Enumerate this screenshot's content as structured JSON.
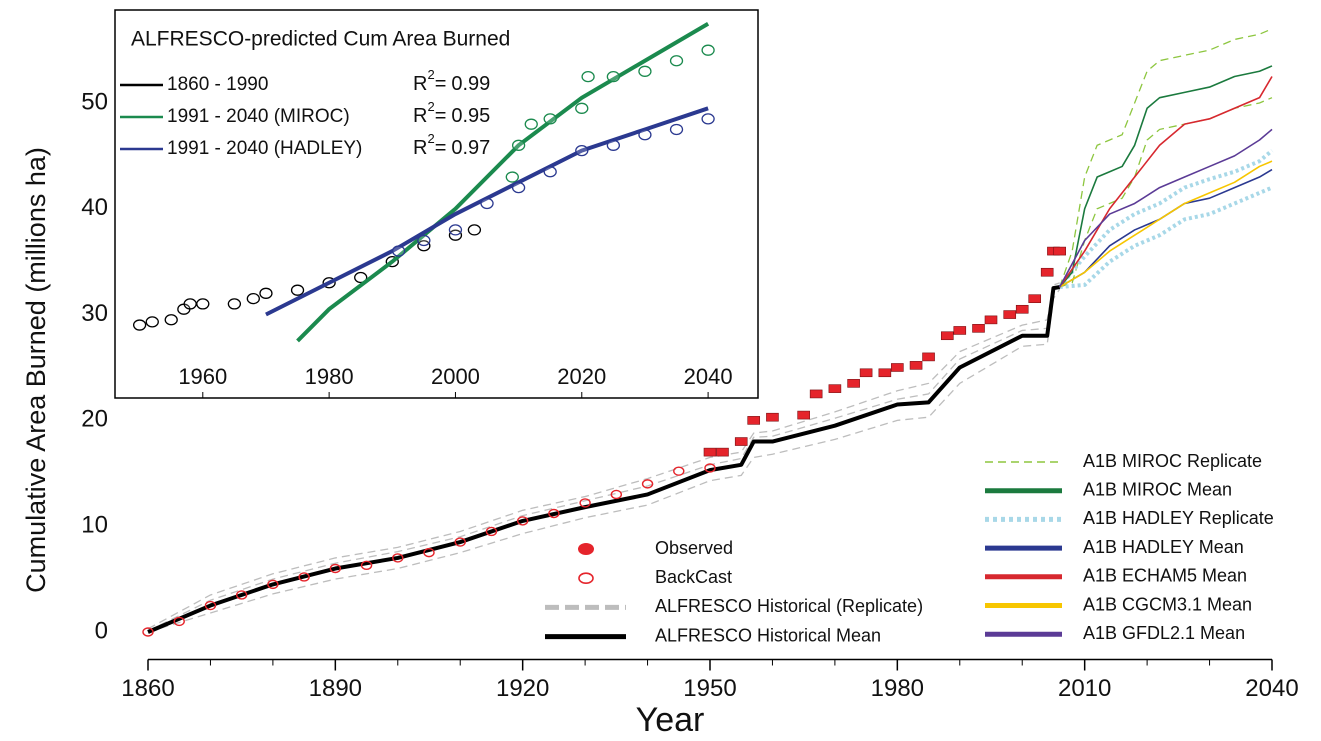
{
  "chart_data": [
    {
      "type": "line",
      "xlabel": "Year",
      "ylabel": "Cumulative Area Burned (millions ha)",
      "xlim": [
        1860,
        2040
      ],
      "ylim": [
        -2.6,
        57
      ],
      "xticks": [
        1860,
        1890,
        1920,
        1950,
        1980,
        2010,
        2040
      ],
      "xminorticks": [
        1870,
        1880,
        1900,
        1910,
        1930,
        1940,
        1960,
        1970,
        1990,
        2000,
        2020,
        2030
      ],
      "yticks": [
        0,
        10,
        20,
        30,
        40,
        50
      ],
      "grid": false,
      "series": [
        {
          "name": "Observed",
          "color": "#e5242b",
          "style": "marker-filled",
          "legend_group": "left",
          "x": [
            1950,
            1952,
            1955,
            1957,
            1960,
            1965,
            1967,
            1970,
            1973,
            1975,
            1978,
            1980,
            1983,
            1985,
            1988,
            1990,
            1993,
            1995,
            1998,
            2000,
            2002,
            2004,
            2005,
            2006
          ],
          "values": [
            17,
            17,
            18,
            20,
            20.3,
            20.5,
            22.5,
            23,
            23.5,
            24.5,
            24.5,
            25,
            25.2,
            26,
            28,
            28.5,
            28.7,
            29.5,
            30,
            30.5,
            31.5,
            34,
            36,
            36
          ]
        },
        {
          "name": "BackCast",
          "color": "#e5242b",
          "style": "marker-open",
          "legend_group": "left",
          "x": [
            1860,
            1865,
            1870,
            1875,
            1880,
            1885,
            1890,
            1895,
            1900,
            1905,
            1910,
            1915,
            1920,
            1925,
            1930,
            1935,
            1940,
            1945,
            1950
          ],
          "values": [
            0,
            1,
            2.5,
            3.5,
            4.5,
            5.2,
            6,
            6.3,
            7,
            7.5,
            8.5,
            9.5,
            10.5,
            11.2,
            12.2,
            13,
            14,
            15.2,
            15.5
          ]
        },
        {
          "name": "ALFRESCO Historical (Replicate)",
          "color": "#bdbdbd",
          "style": "dashed",
          "legend_group": "left",
          "x": [
            1860,
            1870,
            1880,
            1890,
            1900,
            1910,
            1920,
            1930,
            1940,
            1950,
            1955,
            1957,
            1960,
            1970,
            1980,
            1985,
            1990,
            2000,
            2004,
            2005,
            2006
          ],
          "replicates": [
            [
              0.3,
              3.5,
              5.5,
              7,
              8,
              9.5,
              11.5,
              12.8,
              14.5,
              16.5,
              17,
              18.8,
              19,
              20.8,
              22.8,
              23.5,
              26.5,
              29,
              29.5,
              32.8,
              33
            ],
            [
              0.1,
              3,
              5,
              6.5,
              7.6,
              9,
              11,
              12.4,
              13.8,
              15.8,
              16.4,
              18.4,
              18.5,
              20.2,
              22,
              22.5,
              25.8,
              28.5,
              28.7,
              32.6,
              32.7
            ],
            [
              0,
              1.8,
              3.6,
              5,
              6,
              7.5,
              9.3,
              10.8,
              12,
              14.3,
              14.8,
              16.5,
              16.8,
              18.2,
              20,
              20.3,
              23.5,
              27,
              27.2,
              31.5,
              32.4
            ]
          ]
        },
        {
          "name": "ALFRESCO Historical Mean",
          "color": "#000000",
          "style": "thick",
          "legend_group": "left",
          "x": [
            1860,
            1870,
            1880,
            1890,
            1900,
            1910,
            1920,
            1930,
            1940,
            1950,
            1955,
            1957,
            1960,
            1970,
            1980,
            1985,
            1990,
            2000,
            2004,
            2005,
            2006
          ],
          "values": [
            0,
            2.5,
            4.5,
            6,
            7,
            8.5,
            10.5,
            11.8,
            13,
            15.3,
            15.8,
            18,
            18,
            19.5,
            21.5,
            21.7,
            25,
            28,
            28,
            32.5,
            32.6
          ]
        },
        {
          "name": "A1B MIROC Replicate",
          "color": "#8dc63f",
          "style": "dashed",
          "legend_group": "right",
          "x": [
            2006,
            2008,
            2010,
            2012,
            2014,
            2016,
            2018,
            2020,
            2022,
            2026,
            2030,
            2034,
            2038,
            2040
          ],
          "replicates": [
            [
              32.6,
              36,
              43,
              46,
              46.5,
              47,
              50,
              53,
              54,
              54.5,
              55,
              56,
              56.5,
              57
            ],
            [
              32.6,
              33,
              37,
              40,
              40.5,
              41,
              43,
              46.5,
              47.5,
              48,
              48.5,
              49.5,
              50,
              50.5
            ]
          ]
        },
        {
          "name": "A1B MIROC Mean",
          "color": "#1b7a3e",
          "style": "solid",
          "legend_group": "right",
          "x": [
            2006,
            2008,
            2010,
            2012,
            2014,
            2016,
            2018,
            2020,
            2022,
            2026,
            2030,
            2034,
            2038,
            2040
          ],
          "values": [
            32.6,
            34,
            40,
            43,
            43.5,
            44,
            46,
            49.5,
            50.5,
            51,
            51.5,
            52.5,
            53,
            53.5
          ]
        },
        {
          "name": "A1B HADLEY Replicate",
          "color": "#a8d8e8",
          "style": "dotted",
          "legend_group": "right",
          "x": [
            2006,
            2010,
            2014,
            2018,
            2022,
            2026,
            2030,
            2034,
            2038,
            2040
          ],
          "replicates": [
            [
              32.6,
              35.5,
              38,
              39.5,
              40.5,
              42,
              42.8,
              43.5,
              44.5,
              45.5
            ],
            [
              32.6,
              32.8,
              35,
              36.5,
              37.5,
              39,
              39.5,
              40.5,
              41.5,
              42
            ]
          ]
        },
        {
          "name": "A1B HADLEY Mean",
          "color": "#2b3990",
          "style": "solid",
          "legend_group": "right",
          "x": [
            2006,
            2010,
            2014,
            2018,
            2022,
            2026,
            2030,
            2034,
            2038,
            2040
          ],
          "values": [
            32.6,
            34,
            36.5,
            38,
            39,
            40.5,
            41,
            42,
            43,
            43.7
          ]
        },
        {
          "name": "A1B ECHAM5 Mean",
          "color": "#d7282f",
          "style": "solid",
          "legend_group": "right",
          "x": [
            2006,
            2010,
            2014,
            2018,
            2022,
            2026,
            2030,
            2034,
            2038,
            2040
          ],
          "values": [
            32.6,
            36,
            40,
            43,
            46,
            48,
            48.5,
            49.5,
            50.5,
            52.5
          ]
        },
        {
          "name": "A1B CGCM3.1 Mean",
          "color": "#f7c600",
          "style": "solid",
          "legend_group": "right",
          "x": [
            2006,
            2010,
            2014,
            2018,
            2022,
            2026,
            2030,
            2034,
            2038,
            2040
          ],
          "values": [
            32.6,
            34,
            36,
            37.5,
            39,
            40.5,
            41.5,
            42.5,
            44,
            44.5
          ]
        },
        {
          "name": "A1B GFDL2.1 Mean",
          "color": "#5b3b96",
          "style": "solid",
          "legend_group": "right",
          "x": [
            2006,
            2010,
            2014,
            2018,
            2022,
            2026,
            2030,
            2034,
            2038,
            2040
          ],
          "values": [
            32.6,
            37,
            39.5,
            40.5,
            42,
            43,
            44,
            45,
            46.5,
            47.5
          ]
        }
      ]
    },
    {
      "type": "line",
      "title": "ALFRESCO-predicted Cum Area Burned",
      "xlim": [
        1946.1,
        2047.9
      ],
      "ylim": [
        22.1,
        58.8
      ],
      "xticks": [
        1960,
        1980,
        2000,
        2020,
        2040
      ],
      "r2_label": {
        "base": "R",
        "sup": "2",
        "equals": "="
      },
      "series": [
        {
          "name": "1860 - 1990",
          "color": "#000000",
          "r2": 0.99,
          "x": [
            1950,
            1952,
            1955,
            1957,
            1958,
            1960,
            1965,
            1968,
            1970,
            1975,
            1980,
            1985,
            1990,
            1995,
            2000,
            2003
          ],
          "values": [
            29,
            29.3,
            29.5,
            30.5,
            31,
            31,
            31,
            31.5,
            32,
            32.3,
            33,
            33.5,
            35,
            36.5,
            37.5,
            38
          ]
        },
        {
          "name": "1991 - 2040 (MIROC)",
          "color": "#1b8a4e",
          "r2": 0.95,
          "x": [
            2009,
            2010,
            2012,
            2015,
            2020,
            2021,
            2025,
            2030,
            2035,
            2040
          ],
          "values": [
            43,
            46,
            48,
            48.5,
            49.5,
            52.5,
            52.5,
            53,
            54,
            55
          ],
          "fit_x": [
            1975,
            1980,
            1990,
            2000,
            2010,
            2020,
            2030,
            2040
          ],
          "fit_values": [
            27.5,
            30.5,
            35,
            40,
            46,
            50.5,
            54,
            57.5
          ]
        },
        {
          "name": "1991 - 2040 (HADLEY)",
          "color": "#2b3990",
          "r2": 0.97,
          "x": [
            1991,
            1995,
            2000,
            2005,
            2010,
            2015,
            2020,
            2025,
            2030,
            2035,
            2040
          ],
          "values": [
            36,
            37,
            38,
            40.5,
            42,
            43.5,
            45.5,
            46,
            47,
            47.5,
            48.5
          ],
          "fit_x": [
            1970,
            1980,
            1990,
            2000,
            2010,
            2020,
            2030,
            2040
          ],
          "fit_values": [
            30,
            33,
            36,
            39.5,
            42.5,
            45.5,
            47.5,
            49.5
          ]
        }
      ]
    }
  ]
}
